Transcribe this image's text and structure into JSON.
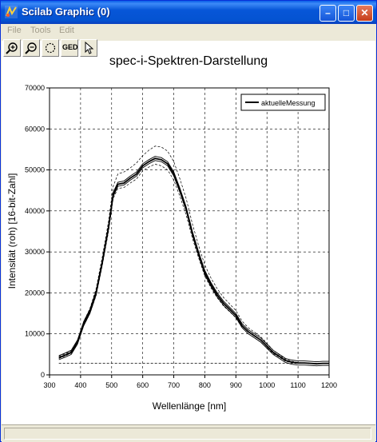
{
  "window": {
    "title": "Scilab Graphic (0)"
  },
  "menu": {
    "items": [
      "File",
      "Tools",
      "Edit"
    ]
  },
  "toolbar": {
    "ged_label": "GED"
  },
  "chart_data": {
    "type": "line",
    "title": "spec-i-Spektren-Darstellung",
    "xlabel": "Wellenlänge [nm]",
    "ylabel": "Intensität (roh) [16-bit-Zahl]",
    "xlim": [
      300,
      1200
    ],
    "ylim": [
      0,
      70000
    ],
    "xticks": [
      300,
      400,
      500,
      600,
      700,
      800,
      900,
      1000,
      1100,
      1200
    ],
    "yticks": [
      0,
      10000,
      20000,
      30000,
      40000,
      50000,
      60000,
      70000
    ],
    "grid": true,
    "legend": {
      "position": "top-right",
      "entries": [
        "aktuelleMessung"
      ]
    },
    "series": [
      {
        "name": "aktuelleMessung",
        "x": [
          330,
          350,
          370,
          390,
          410,
          430,
          450,
          470,
          490,
          505,
          520,
          540,
          560,
          580,
          600,
          620,
          640,
          660,
          680,
          700,
          720,
          740,
          760,
          780,
          800,
          820,
          840,
          860,
          880,
          900,
          920,
          940,
          960,
          980,
          1000,
          1020,
          1040,
          1060,
          1080,
          1100,
          1120,
          1140,
          1160,
          1180,
          1200
        ],
        "y": [
          4200,
          4800,
          5500,
          8000,
          12500,
          15500,
          20000,
          27500,
          36000,
          44000,
          46500,
          46800,
          48000,
          49000,
          51000,
          52000,
          52800,
          52500,
          51500,
          49000,
          45000,
          40500,
          34500,
          29500,
          25000,
          22000,
          19500,
          17500,
          16000,
          14500,
          12000,
          10500,
          9500,
          8500,
          7000,
          5500,
          4500,
          3500,
          3100,
          2900,
          2900,
          2800,
          2700,
          2800,
          2800
        ]
      }
    ],
    "upper_envelope_y": [
      4500,
      5100,
      5800,
      8400,
      13000,
      16200,
      21000,
      28800,
      37500,
      46000,
      49000,
      49500,
      50500,
      51700,
      53500,
      54800,
      55800,
      55600,
      54600,
      52000,
      47800,
      43000,
      36800,
      31500,
      26800,
      23600,
      21000,
      18900,
      17300,
      15700,
      13100,
      11500,
      10400,
      9300,
      7700,
      6000,
      4900,
      3800,
      3300,
      3000,
      2950,
      2850,
      2750,
      2850,
      2850
    ],
    "lower_envelope_y": [
      4000,
      4600,
      5300,
      7700,
      12000,
      15000,
      19300,
      26700,
      35000,
      43000,
      45500,
      45700,
      46800,
      47800,
      49800,
      50700,
      51400,
      51000,
      50000,
      47500,
      43500,
      39000,
      33300,
      28500,
      24100,
      21200,
      18800,
      16800,
      15400,
      13900,
      11500,
      10000,
      9000,
      8000,
      6600,
      5200,
      4300,
      3300,
      3000,
      2850,
      2850,
      2750,
      2650,
      2750,
      2750
    ],
    "dark_spectrum": {
      "x": [
        330,
        1200
      ],
      "y": [
        2800,
        2800
      ]
    }
  },
  "colors": {
    "titlebar": "#0453d1",
    "background": "#ece9d8",
    "plot_line": "#000000",
    "grid": "#000000"
  },
  "icons": [
    "scilab-app-icon",
    "zoom-in-icon",
    "zoom-out-icon",
    "rotate-icon",
    "pointer-icon",
    "minimize-icon",
    "maximize-icon",
    "close-icon"
  ]
}
